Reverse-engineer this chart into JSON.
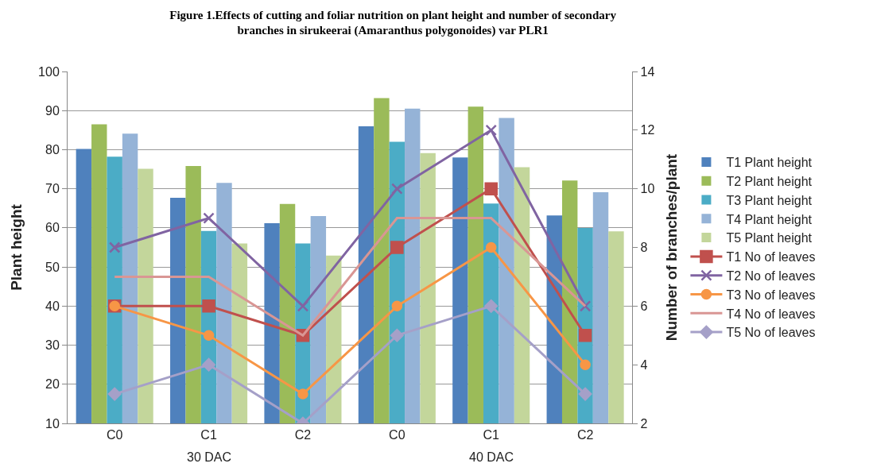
{
  "chart_data": {
    "type": "bar",
    "title": "Figure 1.Effects of cutting and foliar nutrition on plant height and number of secondary\nbranches in sirukeerai (Amaranthus polygonoides) var PLR1",
    "ylabel": "Plant height",
    "y2label": "Number of branches/plant",
    "categories": [
      "C0",
      "C1",
      "C2",
      "C0",
      "C1",
      "C2"
    ],
    "annotations": [
      "30 DAC",
      "40 DAC"
    ],
    "ylim": [
      10,
      100
    ],
    "yticks": [
      10,
      20,
      30,
      40,
      50,
      60,
      70,
      80,
      90,
      100
    ],
    "y2lim": [
      2,
      14
    ],
    "y2ticks": [
      2,
      4,
      6,
      8,
      10,
      12,
      14
    ],
    "grid": "y",
    "legend": "right",
    "series": [
      {
        "name": "T1 Plant height",
        "color": "#4f81bd",
        "values": [
          80.2,
          67.7,
          61.2,
          86,
          78,
          63.2
        ]
      },
      {
        "name": "T2 Plant height",
        "color": "#9bbb59",
        "values": [
          86.5,
          75.8,
          66.1,
          93.2,
          91,
          72.1
        ]
      },
      {
        "name": "T3 Plant height",
        "color": "#4bacc6",
        "values": [
          78.2,
          59.2,
          56,
          82,
          66.2,
          60
        ]
      },
      {
        "name": "T4 Plant height",
        "color": "#95b3d7",
        "values": [
          84.1,
          71.5,
          63,
          90.5,
          88.1,
          69.1
        ]
      },
      {
        "name": "T5 Plant height",
        "color": "#c3d69b",
        "values": [
          75.1,
          56,
          52.9,
          79.1,
          75.5,
          59.1
        ]
      },
      {
        "name": "T1 No of leaves",
        "type": "line",
        "axis": "y2",
        "marker": "square",
        "color": "#c0504d",
        "values": [
          6,
          6,
          5,
          8,
          10,
          5
        ]
      },
      {
        "name": "T2 No of leaves",
        "type": "line",
        "axis": "y2",
        "marker": "cross",
        "color": "#8064a2",
        "values": [
          8,
          9,
          6,
          10,
          12,
          6
        ]
      },
      {
        "name": "T3 No of leaves",
        "type": "line",
        "axis": "y2",
        "marker": "circle",
        "color": "#f79646",
        "values": [
          6,
          5,
          3,
          6,
          8,
          4
        ]
      },
      {
        "name": "T4 No of leaves",
        "type": "line",
        "axis": "y2",
        "marker": "none",
        "color": "#d99694",
        "values": [
          7,
          7,
          5,
          9,
          9,
          6
        ]
      },
      {
        "name": "T5 No of leaves",
        "type": "line",
        "axis": "y2",
        "marker": "diamond",
        "color": "#a5a0c8",
        "values": [
          3,
          4,
          2,
          5,
          6,
          3
        ]
      }
    ]
  }
}
